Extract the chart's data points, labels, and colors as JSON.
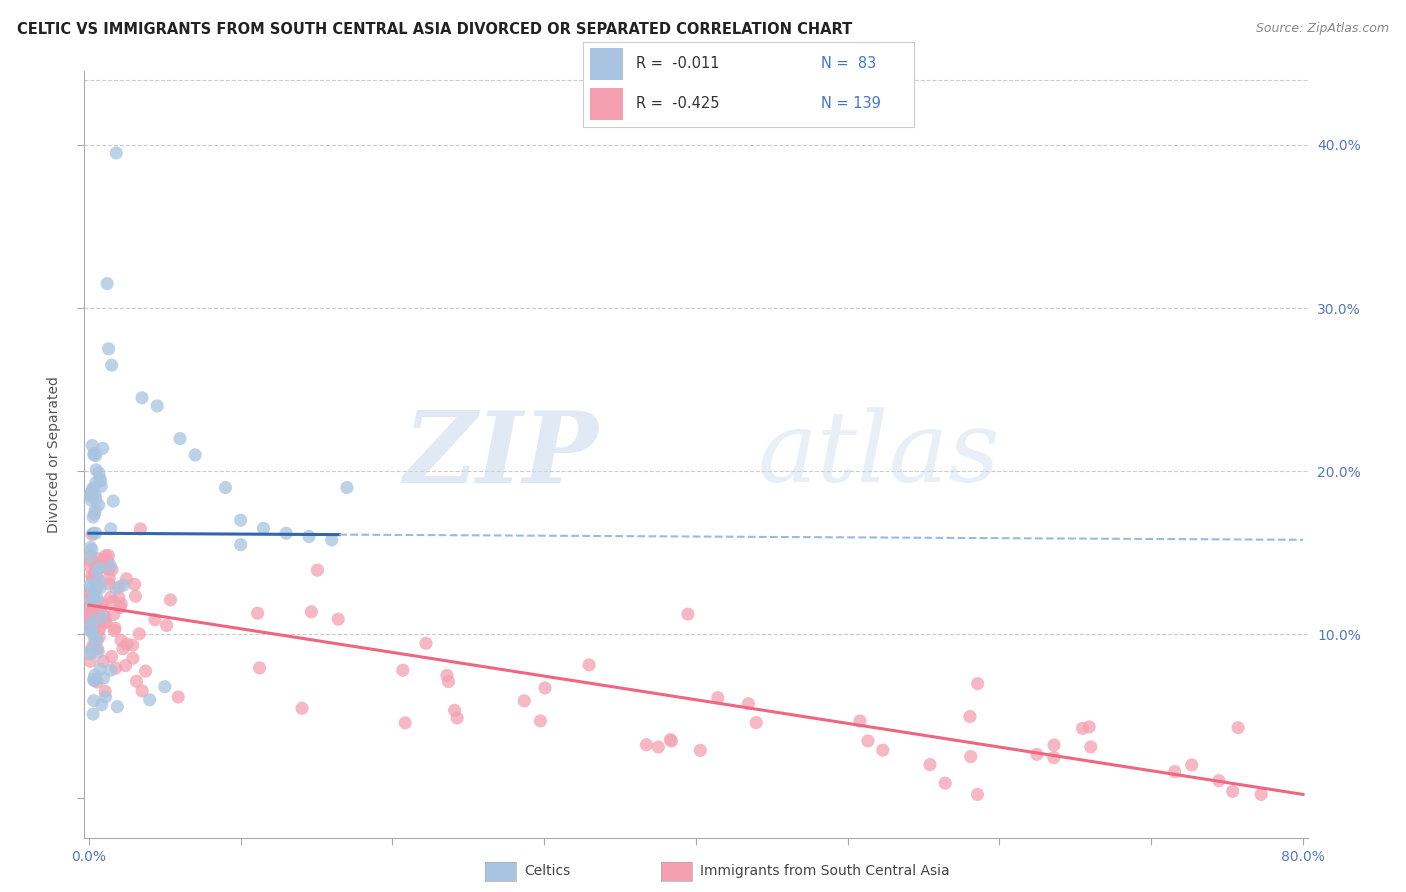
{
  "title": "CELTIC VS IMMIGRANTS FROM SOUTH CENTRAL ASIA DIVORCED OR SEPARATED CORRELATION CHART",
  "source": "Source: ZipAtlas.com",
  "ylabel": "Divorced or Separated",
  "blue_color": "#A8C4E0",
  "pink_color": "#F4A0B0",
  "blue_line_color": "#3366AA",
  "pink_line_color": "#EE6680",
  "blue_dashed_color": "#99BBDD",
  "grid_color": "#CCCCCC",
  "background_color": "#FFFFFF",
  "xlim": [
    -0.003,
    0.803
  ],
  "ylim": [
    -0.025,
    0.445
  ],
  "blue_line_start_x": 0.0,
  "blue_line_end_solid_x": 0.16,
  "blue_line_end_x": 0.8,
  "blue_line_y_intercept": 0.162,
  "blue_line_slope": -0.005,
  "pink_line_y_intercept": 0.118,
  "pink_line_slope": -0.145,
  "right_ytick_vals": [
    0.1,
    0.2,
    0.3,
    0.4
  ],
  "right_ytick_labels": [
    "10.0%",
    "20.0%",
    "30.0%",
    "40.0%"
  ],
  "xtick_vals": [
    0.0,
    0.1,
    0.2,
    0.3,
    0.4,
    0.5,
    0.6,
    0.7,
    0.8
  ],
  "legend_r_blue": "R =  -0.011",
  "legend_n_blue": "N =  83",
  "legend_r_pink": "R =  -0.425",
  "legend_n_pink": "N = 139",
  "watermark_zip": "ZIP",
  "watermark_atlas": "atlas",
  "bottom_label_celtics": "Celtics",
  "bottom_label_immigrants": "Immigrants from South Central Asia"
}
